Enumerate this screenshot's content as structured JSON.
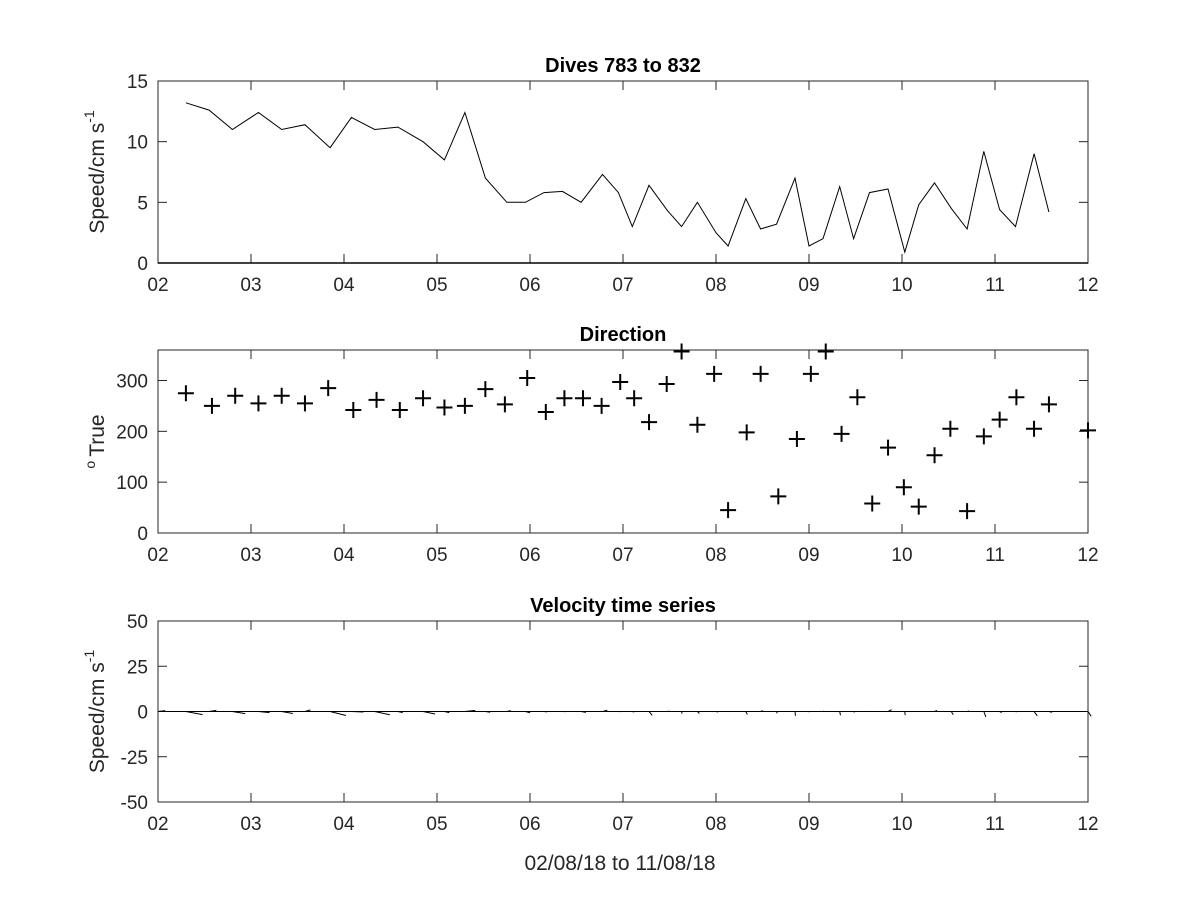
{
  "figure": {
    "xlabel": "02/08/18 to 11/08/18"
  },
  "chart_data": [
    {
      "type": "line",
      "title": "Dives 783 to 832",
      "ylabel": "Speed/cm s",
      "ylabel_sup": "-1",
      "xlim": [
        2,
        12
      ],
      "ylim": [
        0,
        15
      ],
      "xticks": [
        2,
        3,
        4,
        5,
        6,
        7,
        8,
        9,
        10,
        11,
        12
      ],
      "xtick_labels": [
        "02",
        "03",
        "04",
        "05",
        "06",
        "07",
        "08",
        "09",
        "10",
        "11",
        "12"
      ],
      "yticks": [
        0,
        5,
        10,
        15
      ],
      "ytick_labels": [
        "0",
        "5",
        "10",
        "15"
      ],
      "series": [
        {
          "x": [
            2.3,
            2.55,
            2.8,
            3.08,
            3.33,
            3.58,
            3.85,
            4.08,
            4.33,
            4.58,
            4.85,
            5.08,
            5.3,
            5.52,
            5.75,
            5.95,
            6.15,
            6.35,
            6.55,
            6.78,
            6.95,
            7.1,
            7.28,
            7.48,
            7.63,
            7.8,
            8.0,
            8.13,
            8.32,
            8.48,
            8.65,
            8.85,
            9.0,
            9.15,
            9.33,
            9.48,
            9.65,
            9.85,
            10.03,
            10.18,
            10.35,
            10.53,
            10.7,
            10.88,
            11.05,
            11.22,
            11.42,
            11.58
          ],
          "y": [
            13.2,
            12.6,
            11.0,
            12.4,
            11.0,
            11.4,
            9.5,
            12.0,
            11.0,
            11.2,
            10.0,
            8.5,
            12.4,
            7.0,
            5.0,
            5.0,
            5.8,
            5.9,
            5.0,
            7.3,
            5.8,
            3.0,
            6.4,
            4.3,
            3.0,
            5.0,
            2.5,
            1.4,
            5.3,
            2.8,
            3.2,
            7.0,
            1.4,
            2.0,
            6.3,
            2.0,
            5.8,
            6.1,
            0.9,
            4.8,
            6.6,
            4.5,
            2.8,
            9.2,
            4.4,
            3.0,
            9.0,
            4.2
          ]
        }
      ]
    },
    {
      "type": "scatter",
      "title": "Direction",
      "ylabel": "True",
      "ylabel_sup": "o",
      "xlim": [
        2,
        12
      ],
      "ylim": [
        0,
        360
      ],
      "xticks": [
        2,
        3,
        4,
        5,
        6,
        7,
        8,
        9,
        10,
        11,
        12
      ],
      "xtick_labels": [
        "02",
        "03",
        "04",
        "05",
        "06",
        "07",
        "08",
        "09",
        "10",
        "11",
        "12"
      ],
      "yticks": [
        0,
        100,
        200,
        300
      ],
      "ytick_labels": [
        "0",
        "100",
        "200",
        "300"
      ],
      "series": [
        {
          "marker": "+",
          "x": [
            2.3,
            2.58,
            2.83,
            3.08,
            3.33,
            3.58,
            3.83,
            4.1,
            4.35,
            4.6,
            4.85,
            5.08,
            5.3,
            5.52,
            5.73,
            5.97,
            6.17,
            6.37,
            6.57,
            6.77,
            6.97,
            7.12,
            7.28,
            7.47,
            7.63,
            7.8,
            7.98,
            8.13,
            8.33,
            8.48,
            8.67,
            8.87,
            9.02,
            9.18,
            9.35,
            9.52,
            9.68,
            9.85,
            10.02,
            10.18,
            10.35,
            10.52,
            10.7,
            10.88,
            11.05,
            11.23,
            11.42,
            11.58,
            12.0
          ],
          "y": [
            275,
            250,
            270,
            255,
            270,
            255,
            285,
            242,
            262,
            242,
            265,
            247,
            250,
            283,
            253,
            305,
            238,
            265,
            265,
            250,
            297,
            265,
            218,
            293,
            357,
            213,
            313,
            45,
            198,
            313,
            72,
            185,
            313,
            357,
            195,
            267,
            58,
            168,
            90,
            52,
            153,
            205,
            43,
            190,
            223,
            267,
            205,
            253,
            202
          ]
        }
      ]
    },
    {
      "type": "quiver",
      "title": "Velocity time series",
      "ylabel": "Speed/cm s",
      "ylabel_sup": "-1",
      "xlim": [
        2,
        12
      ],
      "ylim": [
        -50,
        50
      ],
      "xticks": [
        2,
        3,
        4,
        5,
        6,
        7,
        8,
        9,
        10,
        11,
        12
      ],
      "xtick_labels": [
        "02",
        "03",
        "04",
        "05",
        "06",
        "07",
        "08",
        "09",
        "10",
        "11",
        "12"
      ],
      "yticks": [
        -50,
        -25,
        0,
        25,
        50
      ],
      "ytick_labels": [
        "-50",
        "-25",
        "0",
        "25",
        "50"
      ],
      "vectors": [
        {
          "x": 2.0,
          "u": 1.8,
          "v": 0.5
        },
        {
          "x": 2.3,
          "u": 4.2,
          "v": -1.7
        },
        {
          "x": 2.55,
          "u": 1.8,
          "v": 0.6
        },
        {
          "x": 2.8,
          "u": 3.2,
          "v": -1.2
        },
        {
          "x": 3.08,
          "u": 2.8,
          "v": -0.6
        },
        {
          "x": 3.33,
          "u": 2.8,
          "v": -1.1
        },
        {
          "x": 3.58,
          "u": 1.4,
          "v": 0.9
        },
        {
          "x": 3.85,
          "u": 4.0,
          "v": -2.2
        },
        {
          "x": 4.08,
          "u": 3.0,
          "v": -0.3
        },
        {
          "x": 4.33,
          "u": 3.8,
          "v": -1.8
        },
        {
          "x": 4.58,
          "u": 1.2,
          "v": -0.6
        },
        {
          "x": 4.85,
          "u": 3.0,
          "v": -1.4
        },
        {
          "x": 5.08,
          "u": 1.2,
          "v": -0.6
        },
        {
          "x": 5.3,
          "u": 2.6,
          "v": 0.6
        },
        {
          "x": 5.52,
          "u": 1.2,
          "v": -0.4
        },
        {
          "x": 5.75,
          "u": 1.0,
          "v": 0.5
        },
        {
          "x": 5.95,
          "u": 1.2,
          "v": -0.7
        },
        {
          "x": 6.15,
          "u": 0.8,
          "v": -0.2
        },
        {
          "x": 6.35,
          "u": 0.8,
          "v": -0.1
        },
        {
          "x": 6.55,
          "u": 1.2,
          "v": -0.5
        },
        {
          "x": 6.78,
          "u": 1.2,
          "v": 0.7
        },
        {
          "x": 6.95,
          "u": 0.6,
          "v": -0.1
        },
        {
          "x": 7.1,
          "u": 0.5,
          "v": -0.3
        },
        {
          "x": 7.28,
          "u": 0.8,
          "v": -2.1
        },
        {
          "x": 7.48,
          "u": 0.5,
          "v": 0.2
        },
        {
          "x": 7.63,
          "u": 0.1,
          "v": -1.2
        },
        {
          "x": 7.8,
          "u": 0.5,
          "v": -1.1
        },
        {
          "x": 8.0,
          "u": 0.5,
          "v": -0.3
        },
        {
          "x": 8.13,
          "u": 0.2,
          "v": -0.1
        },
        {
          "x": 8.32,
          "u": 0.4,
          "v": -1.6
        },
        {
          "x": 8.48,
          "u": 0.5,
          "v": 0.5
        },
        {
          "x": 8.65,
          "u": 0.2,
          "v": -1.0
        },
        {
          "x": 8.85,
          "u": 0.1,
          "v": -2.4
        },
        {
          "x": 9.0,
          "u": 0.0,
          "v": -0.4
        },
        {
          "x": 9.15,
          "u": 0.3,
          "v": 0.2
        },
        {
          "x": 9.33,
          "u": 0.2,
          "v": -2.1
        },
        {
          "x": 9.48,
          "u": 0.2,
          "v": -0.5
        },
        {
          "x": 9.65,
          "u": 0.2,
          "v": 0.1
        },
        {
          "x": 9.85,
          "u": 0.9,
          "v": 1.0
        },
        {
          "x": 10.03,
          "u": 0.1,
          "v": -2.0
        },
        {
          "x": 10.18,
          "u": 0.0,
          "v": -0.2
        },
        {
          "x": 10.35,
          "u": 0.6,
          "v": 0.6
        },
        {
          "x": 10.53,
          "u": 0.5,
          "v": -1.8
        },
        {
          "x": 10.7,
          "u": 0.5,
          "v": 0.3
        },
        {
          "x": 10.88,
          "u": 0.5,
          "v": -3.0
        },
        {
          "x": 11.05,
          "u": 0.5,
          "v": -0.6
        },
        {
          "x": 11.22,
          "u": 0.3,
          "v": -0.2
        },
        {
          "x": 11.42,
          "u": 0.8,
          "v": -2.4
        },
        {
          "x": 11.58,
          "u": 0.8,
          "v": -0.4
        },
        {
          "x": 12.0,
          "u": 0.8,
          "v": -2.6
        }
      ]
    }
  ]
}
